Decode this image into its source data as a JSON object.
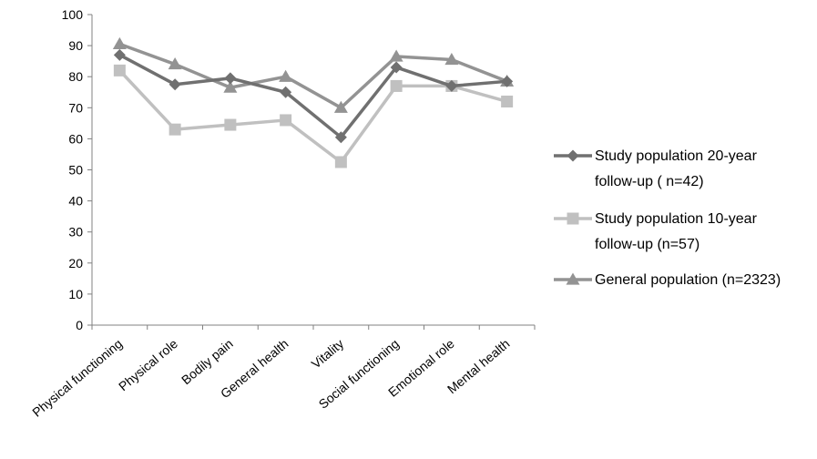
{
  "chart_data": {
    "type": "line",
    "title": "",
    "xlabel": "",
    "ylabel": "",
    "ylim": [
      0,
      100
    ],
    "ytick_step": 10,
    "grid": false,
    "legend_position": "right",
    "categories": [
      "Physical functioning",
      "Physical role",
      "Bodily pain",
      "General health",
      "Vitality",
      "Social functioning",
      "Emotional role",
      "Mental health"
    ],
    "series": [
      {
        "name": "Study population 20-year follow-up ( n=42)",
        "legend_lines": [
          "Study population 20-year",
          "follow-up ( n=42)"
        ],
        "marker": "diamond",
        "color": "#707070",
        "values": [
          87,
          77.5,
          79.5,
          75,
          60.5,
          83,
          77,
          78.5
        ]
      },
      {
        "name": "Study population 10-year follow-up (n=57)",
        "legend_lines": [
          "Study population 10-year",
          "follow-up (n=57)"
        ],
        "marker": "square",
        "color": "#c0c0c0",
        "values": [
          82,
          63,
          64.5,
          66,
          52.5,
          77,
          77,
          72
        ]
      },
      {
        "name": "General population (n=2323)",
        "legend_lines": [
          "General population (n=2323)"
        ],
        "marker": "triangle",
        "color": "#939393",
        "values": [
          90.5,
          84,
          76.5,
          80,
          70,
          86.5,
          85.5,
          78.5
        ]
      }
    ]
  }
}
